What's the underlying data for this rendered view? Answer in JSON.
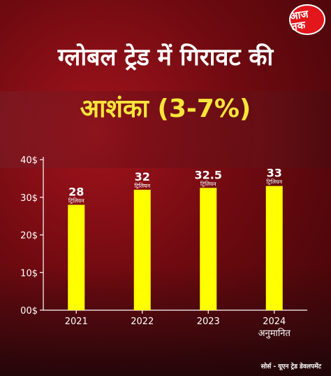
{
  "brand": {
    "logo_text": "आज तक"
  },
  "title": {
    "line1": "ग्लोबल ट्रेड में गिरावट की",
    "line2": "आशंका (3-7%)"
  },
  "colors": {
    "bar": "#ffff00",
    "title_accent": "#f7e53a",
    "text": "#ffffff",
    "background": "#8e1017"
  },
  "source": "सोर्स - यूएन ट्रेड डेवलपमेंट",
  "chart_data": {
    "type": "bar",
    "categories": [
      "2021",
      "2022",
      "2023",
      "2024"
    ],
    "category_sublabels": [
      "",
      "",
      "",
      "अनुमानित"
    ],
    "values": [
      28,
      32,
      32.5,
      33
    ],
    "value_labels": [
      "28",
      "32",
      "32.5",
      "33"
    ],
    "value_unit_label": "ट्रिलियन",
    "yticks": [
      "00$",
      "10$",
      "20$",
      "30$",
      "40$"
    ],
    "ylim": [
      0,
      40
    ],
    "grid": false,
    "title": "ग्लोबल ट्रेड में गिरावट की आशंका (3-7%)"
  }
}
